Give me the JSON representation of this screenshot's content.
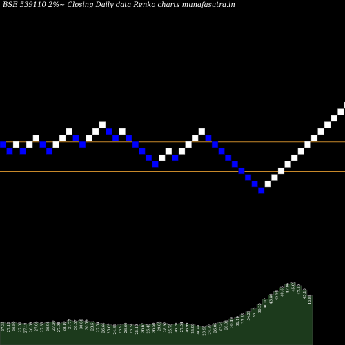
{
  "chart_data": {
    "type": "renko",
    "title": "BSE 539110  2%~  Closing Daily data  Renko  charts munafasutra.in",
    "colors": {
      "background": "#000000",
      "up_brick": "#ffffff",
      "down_brick": "#0000ff",
      "level_line": "#c8892a",
      "volume_fill": "#1c3a1c",
      "volume_edge": "#4a4a4a",
      "label": "#ffffff"
    },
    "reference_levels": [
      30.5,
      28.25
    ],
    "bricks": [
      {
        "dir": "down",
        "price": 30.25
      },
      {
        "dir": "down",
        "price": 29.75
      },
      {
        "dir": "up",
        "price": 30.25
      },
      {
        "dir": "down",
        "price": 29.75
      },
      {
        "dir": "up",
        "price": 30.25
      },
      {
        "dir": "up",
        "price": 30.75
      },
      {
        "dir": "down",
        "price": 30.25
      },
      {
        "dir": "down",
        "price": 29.75
      },
      {
        "dir": "up",
        "price": 30.25
      },
      {
        "dir": "up",
        "price": 30.75
      },
      {
        "dir": "up",
        "price": 31.25
      },
      {
        "dir": "down",
        "price": 30.75
      },
      {
        "dir": "down",
        "price": 30.25
      },
      {
        "dir": "up",
        "price": 30.75
      },
      {
        "dir": "up",
        "price": 31.25
      },
      {
        "dir": "up",
        "price": 31.75
      },
      {
        "dir": "down",
        "price": 31.25
      },
      {
        "dir": "down",
        "price": 30.75
      },
      {
        "dir": "up",
        "price": 31.25
      },
      {
        "dir": "down",
        "price": 30.75
      },
      {
        "dir": "down",
        "price": 30.25
      },
      {
        "dir": "down",
        "price": 29.75
      },
      {
        "dir": "down",
        "price": 29.25
      },
      {
        "dir": "down",
        "price": 28.75
      },
      {
        "dir": "up",
        "price": 29.25
      },
      {
        "dir": "up",
        "price": 29.75
      },
      {
        "dir": "down",
        "price": 29.25
      },
      {
        "dir": "up",
        "price": 29.75
      },
      {
        "dir": "up",
        "price": 30.25
      },
      {
        "dir": "up",
        "price": 30.75
      },
      {
        "dir": "up",
        "price": 31.25
      },
      {
        "dir": "down",
        "price": 30.75
      },
      {
        "dir": "down",
        "price": 30.25
      },
      {
        "dir": "down",
        "price": 29.75
      },
      {
        "dir": "down",
        "price": 29.25
      },
      {
        "dir": "down",
        "price": 28.75
      },
      {
        "dir": "down",
        "price": 28.25
      },
      {
        "dir": "down",
        "price": 27.75
      },
      {
        "dir": "down",
        "price": 27.25
      },
      {
        "dir": "down",
        "price": 26.75
      },
      {
        "dir": "up",
        "price": 27.25
      },
      {
        "dir": "up",
        "price": 27.75
      },
      {
        "dir": "up",
        "price": 28.25
      },
      {
        "dir": "up",
        "price": 28.75
      },
      {
        "dir": "up",
        "price": 29.25
      },
      {
        "dir": "up",
        "price": 29.75
      },
      {
        "dir": "up",
        "price": 30.25
      },
      {
        "dir": "up",
        "price": 30.75
      },
      {
        "dir": "up",
        "price": 31.25
      },
      {
        "dir": "up",
        "price": 31.75
      },
      {
        "dir": "up",
        "price": 32.25
      },
      {
        "dir": "up",
        "price": 32.75
      },
      {
        "dir": "up",
        "price": 33.25
      },
      {
        "dir": "up",
        "price": 33.75
      },
      {
        "dir": "up",
        "price": 34.25
      },
      {
        "dir": "up",
        "price": 34.75
      },
      {
        "dir": "up",
        "price": 35.25
      },
      {
        "dir": "down",
        "price": 34.75
      },
      {
        "dir": "down",
        "price": 34.25
      },
      {
        "dir": "down",
        "price": 33.75
      }
    ],
    "price_labels": [
      "27.35",
      "27.10",
      "26.80",
      "27.00",
      "27.18",
      "26.69",
      "27.06",
      "27.33",
      "26.96",
      "27.50",
      "27.98",
      "28.10",
      "31.77",
      "30.57",
      "30.86",
      "30.59",
      "28.51",
      "27.54",
      "26.66",
      "25.69",
      "24.85",
      "25.97",
      "26.60",
      "25.34",
      "25.10",
      "26.67",
      "26.45",
      "26.50",
      "29.85",
      "28.92",
      "25.75",
      "26.20",
      "27.54",
      "26.99",
      "25.99",
      "24.48",
      "23.95",
      "24.87",
      "26.05",
      "27.24",
      "28.01",
      "30.49",
      "31.10",
      "33.33",
      "34.29",
      "35.15",
      "36.35",
      "40.02",
      "43.86",
      "45.86",
      "40.66",
      "47.06",
      "45.09",
      "47.50",
      "45.15",
      "42.88"
    ],
    "volume_profile": [
      31,
      30,
      31,
      30,
      29,
      30,
      31,
      30,
      31,
      32,
      30,
      31,
      34,
      33,
      34,
      33,
      32,
      30,
      29,
      28,
      27,
      28,
      29,
      28,
      27,
      29,
      28,
      29,
      31,
      30,
      28,
      29,
      30,
      29,
      28,
      26,
      25,
      27,
      29,
      31,
      33,
      36,
      38,
      42,
      46,
      50,
      56,
      63,
      69,
      74,
      79,
      84,
      86,
      82,
      76,
      68
    ]
  }
}
